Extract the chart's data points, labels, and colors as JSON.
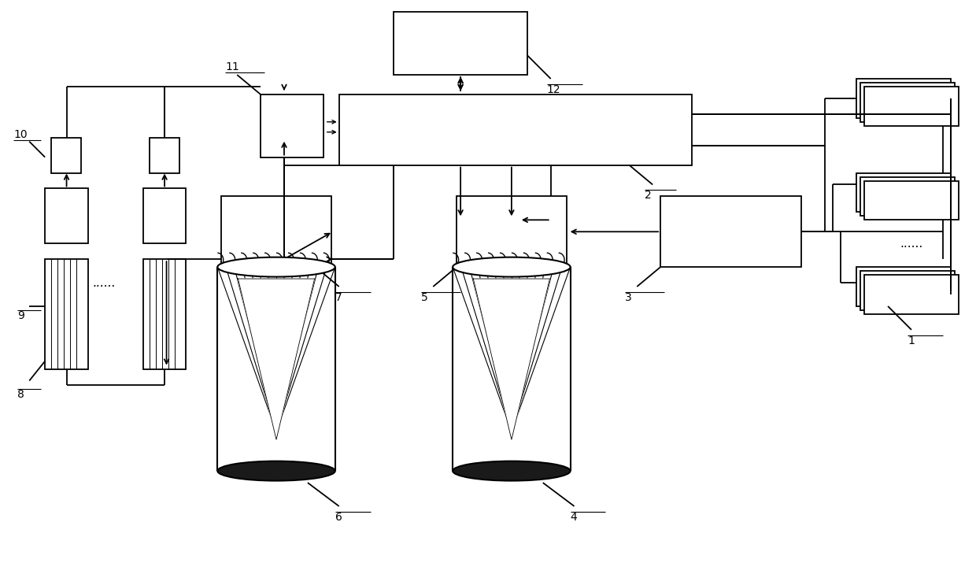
{
  "bg_color": "#ffffff",
  "line_color": "#000000",
  "figsize": [
    12.4,
    7.29
  ],
  "dpi": 100
}
